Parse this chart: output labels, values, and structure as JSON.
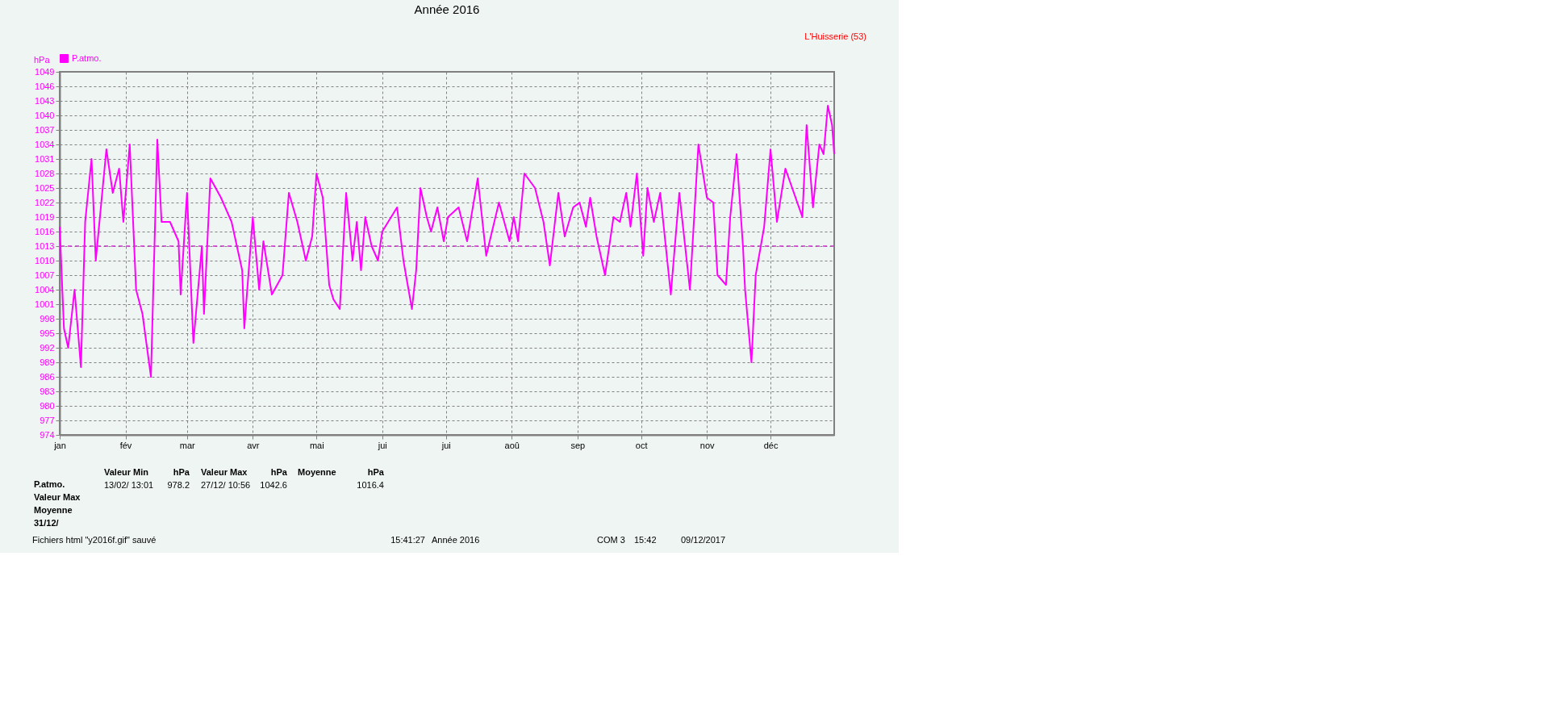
{
  "chart_data": {
    "type": "line",
    "title": "Année 2016",
    "ylabel": "hPa",
    "x": [
      "2016-01-01",
      "2016-01-03",
      "2016-01-05",
      "2016-01-08",
      "2016-01-11",
      "2016-01-13",
      "2016-01-16",
      "2016-01-18",
      "2016-01-23",
      "2016-01-26",
      "2016-01-29",
      "2016-01-31",
      "2016-02-03",
      "2016-02-06",
      "2016-02-09",
      "2016-02-13",
      "2016-02-16",
      "2016-02-18",
      "2016-02-22",
      "2016-02-26",
      "2016-02-27",
      "2016-03-01",
      "2016-03-04",
      "2016-03-08",
      "2016-03-09",
      "2016-03-12",
      "2016-03-17",
      "2016-03-22",
      "2016-03-27",
      "2016-03-28",
      "2016-04-01",
      "2016-04-04",
      "2016-04-06",
      "2016-04-10",
      "2016-04-15",
      "2016-04-18",
      "2016-04-22",
      "2016-04-26",
      "2016-04-29",
      "2016-05-01",
      "2016-05-04",
      "2016-05-07",
      "2016-05-09",
      "2016-05-12",
      "2016-05-15",
      "2016-05-18",
      "2016-05-20",
      "2016-05-22",
      "2016-05-24",
      "2016-05-27",
      "2016-05-30",
      "2016-06-01",
      "2016-06-08",
      "2016-06-11",
      "2016-06-15",
      "2016-06-17",
      "2016-06-19",
      "2016-06-22",
      "2016-06-24",
      "2016-06-27",
      "2016-06-30",
      "2016-07-02",
      "2016-07-07",
      "2016-07-11",
      "2016-07-16",
      "2016-07-20",
      "2016-07-26",
      "2016-07-31",
      "2016-08-02",
      "2016-08-04",
      "2016-08-07",
      "2016-08-12",
      "2016-08-16",
      "2016-08-19",
      "2016-08-23",
      "2016-08-26",
      "2016-08-30",
      "2016-09-02",
      "2016-09-05",
      "2016-09-07",
      "2016-09-10",
      "2016-09-14",
      "2016-09-18",
      "2016-09-21",
      "2016-09-24",
      "2016-09-26",
      "2016-09-29",
      "2016-10-02",
      "2016-10-04",
      "2016-10-07",
      "2016-10-10",
      "2016-10-15",
      "2016-10-19",
      "2016-10-24",
      "2016-10-28",
      "2016-11-01",
      "2016-11-04",
      "2016-11-06",
      "2016-11-10",
      "2016-11-12",
      "2016-11-15",
      "2016-11-18",
      "2016-11-19",
      "2016-11-22",
      "2016-11-24",
      "2016-11-28",
      "2016-12-01",
      "2016-12-04",
      "2016-12-08",
      "2016-12-16",
      "2016-12-18",
      "2016-12-21",
      "2016-12-24",
      "2016-12-26",
      "2016-12-28",
      "2016-12-30",
      "2016-12-31"
    ],
    "series": [
      {
        "name": "P.atmo.",
        "color": "#ff00ff",
        "values": [
          1017,
          996,
          992,
          1004,
          988,
          1018,
          1031,
          1010,
          1033,
          1024,
          1029,
          1018,
          1034,
          1004,
          999,
          986,
          1035,
          1018,
          1018,
          1014,
          1003,
          1024,
          993,
          1013,
          999,
          1027,
          1023,
          1018,
          1008,
          996,
          1019,
          1004,
          1014,
          1003,
          1007,
          1024,
          1018,
          1010,
          1015,
          1028,
          1023,
          1005,
          1002,
          1000,
          1024,
          1010,
          1018,
          1008,
          1019,
          1013,
          1010,
          1016,
          1021,
          1010,
          1000,
          1008,
          1025,
          1019,
          1016,
          1021,
          1014,
          1019,
          1021,
          1014,
          1027,
          1011,
          1022,
          1014,
          1019,
          1014,
          1028,
          1025,
          1018,
          1009,
          1024,
          1015,
          1021,
          1022,
          1017,
          1023,
          1015,
          1007,
          1019,
          1018,
          1024,
          1017,
          1028,
          1011,
          1025,
          1018,
          1024,
          1003,
          1024,
          1004,
          1034,
          1023,
          1022,
          1007,
          1005,
          1019,
          1032,
          1013,
          1004,
          989,
          1007,
          1017,
          1033,
          1018,
          1029,
          1019,
          1038,
          1021,
          1034,
          1032,
          1042,
          1038,
          1032
        ]
      }
    ],
    "xlim": [
      "2016-01-01",
      "2016-12-31"
    ],
    "xticks": [
      {
        "value": "2016-01-01",
        "label": "jan"
      },
      {
        "value": "2016-02-01",
        "label": "fév"
      },
      {
        "value": "2016-03-01",
        "label": "mar"
      },
      {
        "value": "2016-04-01",
        "label": "avr"
      },
      {
        "value": "2016-05-01",
        "label": "mai"
      },
      {
        "value": "2016-06-01",
        "label": "jui"
      },
      {
        "value": "2016-07-01",
        "label": "jui"
      },
      {
        "value": "2016-08-01",
        "label": "aoû"
      },
      {
        "value": "2016-09-01",
        "label": "sep"
      },
      {
        "value": "2016-10-01",
        "label": "oct"
      },
      {
        "value": "2016-11-01",
        "label": "nov"
      },
      {
        "value": "2016-12-01",
        "label": "déc"
      }
    ],
    "ylim": [
      974,
      1049
    ],
    "yticks": [
      974,
      977,
      980,
      983,
      986,
      989,
      992,
      995,
      998,
      1001,
      1004,
      1007,
      1010,
      1013,
      1016,
      1019,
      1022,
      1025,
      1028,
      1031,
      1034,
      1037,
      1040,
      1043,
      1046,
      1049
    ],
    "ref_lines": [
      {
        "axis": "y",
        "value": 1013,
        "color": "#cc33cc",
        "line_style": "dashed"
      }
    ],
    "grid": true,
    "legend": "top left",
    "line_style": "solid",
    "marker": "none",
    "annotations": [
      "L'Huisserie (53)",
      "P.atmo.",
      "Valeur Max",
      "Moyenne",
      "31/12/",
      "Valeur Min",
      "hPa",
      "13/02/  13:01",
      "978.2",
      "Valeur Max",
      "hPa",
      "27/12/  10:56",
      "1042.6",
      "Moyenne",
      "hPa",
      "1016.4",
      "Fichiers html  \"y2016f.gif\"  sauvé",
      "15:41:27",
      "Année 2016",
      "COM 3",
      "15:42",
      "09/12/2017"
    ]
  }
}
